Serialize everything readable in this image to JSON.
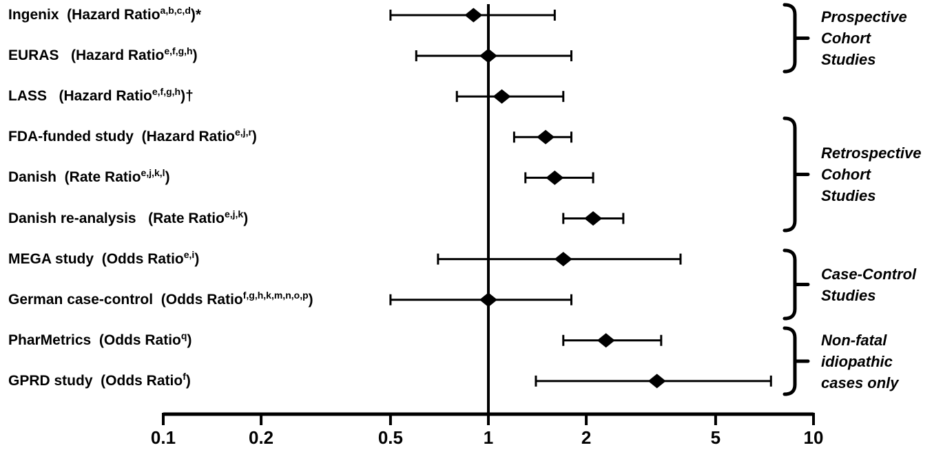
{
  "figure": {
    "background_color": "#ffffff",
    "ink_color": "#000000",
    "title": ""
  },
  "chart_data": {
    "type": "forest",
    "scale": "log10",
    "x_axis": {
      "range": [
        0.1,
        10
      ],
      "ticks": [
        0.1,
        0.2,
        0.5,
        1,
        2,
        5,
        10
      ],
      "tick_labels": [
        "0.1",
        "0.2",
        "0.5",
        "1",
        "2",
        "5",
        "10"
      ],
      "reference_line_value": 1
    },
    "grid": "off",
    "legend": "none",
    "studies": [
      {
        "name": "Ingenix",
        "measure": "Hazard Ratio",
        "label_prefix": "Ingenix  (Hazard Ratio",
        "label_sup": "a,b,c,d",
        "label_suffix": ")*",
        "estimate": 0.9,
        "ci_low": 0.5,
        "ci_high": 1.6
      },
      {
        "name": "EURAS",
        "measure": "Hazard Ratio",
        "label_prefix": "EURAS   (Hazard Ratio",
        "label_sup": "e,f,g,h",
        "label_suffix": ")",
        "estimate": 1.0,
        "ci_low": 0.6,
        "ci_high": 1.8
      },
      {
        "name": "LASS",
        "measure": "Hazard Ratio",
        "label_prefix": "LASS   (Hazard Ratio",
        "label_sup": "e,f,g,h",
        "label_suffix": ")†",
        "estimate": 1.1,
        "ci_low": 0.8,
        "ci_high": 1.7
      },
      {
        "name": "FDA-funded study",
        "measure": "Hazard Ratio",
        "label_prefix": "FDA-funded study  (Hazard Ratio",
        "label_sup": "e,j,r",
        "label_suffix": ")",
        "estimate": 1.5,
        "ci_low": 1.2,
        "ci_high": 1.8
      },
      {
        "name": "Danish",
        "measure": "Rate Ratio",
        "label_prefix": "Danish  (Rate Ratio",
        "label_sup": "e,j,k,l",
        "label_suffix": ")",
        "estimate": 1.6,
        "ci_low": 1.3,
        "ci_high": 2.1
      },
      {
        "name": "Danish re-analysis",
        "measure": "Rate Ratio",
        "label_prefix": "Danish re-analysis   (Rate Ratio",
        "label_sup": "e,j,k",
        "label_suffix": ")",
        "estimate": 2.1,
        "ci_low": 1.7,
        "ci_high": 2.6
      },
      {
        "name": "MEGA study",
        "measure": "Odds Ratio",
        "label_prefix": "MEGA study  (Odds Ratio",
        "label_sup": "e,i",
        "label_suffix": ")",
        "estimate": 1.7,
        "ci_low": 0.7,
        "ci_high": 3.9
      },
      {
        "name": "German case-control",
        "measure": "Odds Ratio",
        "label_prefix": "German case-control  (Odds Ratio",
        "label_sup": "f,g,h,k,m,n,o,p",
        "label_suffix": ")",
        "estimate": 1.0,
        "ci_low": 0.5,
        "ci_high": 1.8
      },
      {
        "name": "PharMetrics",
        "measure": "Odds Ratio",
        "label_prefix": "PharMetrics  (Odds Ratio",
        "label_sup": "q",
        "label_suffix": ")",
        "estimate": 2.3,
        "ci_low": 1.7,
        "ci_high": 3.4
      },
      {
        "name": "GPRD study",
        "measure": "Odds Ratio",
        "label_prefix": "GPRD study  (Odds Ratio",
        "label_sup": "f",
        "label_suffix": ")",
        "estimate": 3.3,
        "ci_low": 1.4,
        "ci_high": 7.4
      }
    ],
    "groups": [
      {
        "lines": [
          "Prospective",
          "Cohort",
          "Studies"
        ],
        "label": "Prospective Cohort Studies",
        "study_indices": [
          0,
          1
        ]
      },
      {
        "lines": [
          "Retrospective",
          "Cohort",
          "Studies"
        ],
        "label": "Retrospective Cohort Studies",
        "study_indices": [
          3,
          4,
          5
        ]
      },
      {
        "lines": [
          "Case-Control",
          "Studies"
        ],
        "label": "Case-Control Studies",
        "study_indices": [
          6,
          7
        ]
      },
      {
        "lines": [
          "Non-fatal",
          "idiopathic",
          "cases only"
        ],
        "label": "Non-fatal idiopathic cases only",
        "study_indices": [
          8,
          9
        ]
      }
    ]
  }
}
